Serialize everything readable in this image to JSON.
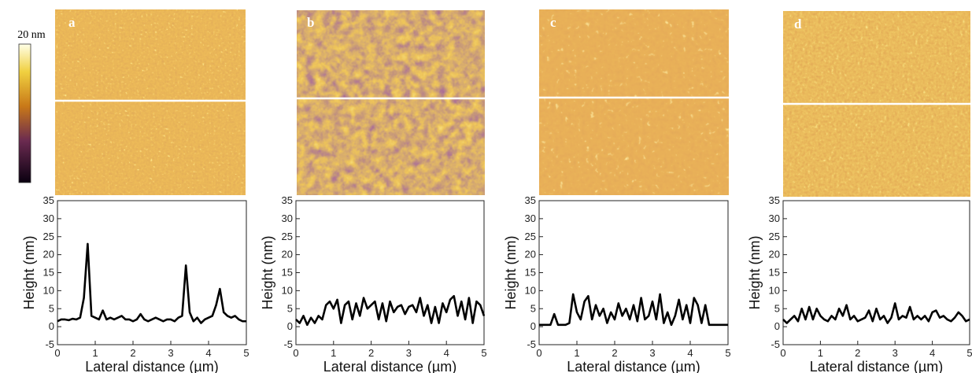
{
  "colorbar_label": "20 nm",
  "chart_data": [
    {
      "type": "line",
      "panel_label": "a",
      "xlabel": "Lateral distance (µm)",
      "ylabel": "Height (nm)",
      "color": "#000000",
      "x": [
        0,
        0.1,
        0.2,
        0.3,
        0.4,
        0.5,
        0.6,
        0.7,
        0.8,
        0.9,
        1,
        1.1,
        1.2,
        1.3,
        1.4,
        1.5,
        1.6,
        1.7,
        1.8,
        1.9,
        2,
        2.1,
        2.2,
        2.3,
        2.4,
        2.5,
        2.6,
        2.7,
        2.8,
        2.9,
        3,
        3.1,
        3.2,
        3.3,
        3.4,
        3.5,
        3.6,
        3.7,
        3.8,
        3.9,
        4,
        4.1,
        4.2,
        4.3,
        4.4,
        4.5,
        4.6,
        4.7,
        4.8,
        4.9,
        5
      ],
      "values": [
        1.5,
        2,
        2,
        1.8,
        2.2,
        2,
        2.5,
        8,
        23,
        3,
        2.5,
        2,
        4.5,
        2,
        2.5,
        2,
        2.5,
        3,
        2,
        2,
        1.5,
        2,
        3.5,
        2,
        1.5,
        2,
        2.5,
        2,
        1.5,
        2,
        2,
        1.5,
        2.5,
        3,
        17,
        4,
        1.5,
        2.5,
        1,
        2,
        2.5,
        3,
        6,
        10.5,
        4,
        3,
        2.5,
        3,
        2,
        1.5,
        1.5
      ],
      "xlim": [
        0,
        5
      ],
      "xticks": [
        0,
        1,
        2,
        3,
        4,
        5
      ],
      "ylim": [
        -5,
        35
      ],
      "yticks": [
        -5,
        0,
        5,
        10,
        15,
        20,
        25,
        30,
        35
      ]
    },
    {
      "type": "line",
      "panel_label": "b",
      "xlabel": "Lateral distance (µm)",
      "ylabel": "Height (nm)",
      "color": "#000000",
      "x": [
        0,
        0.1,
        0.2,
        0.3,
        0.4,
        0.5,
        0.6,
        0.7,
        0.8,
        0.9,
        1,
        1.1,
        1.2,
        1.3,
        1.4,
        1.5,
        1.6,
        1.7,
        1.8,
        1.9,
        2,
        2.1,
        2.2,
        2.3,
        2.4,
        2.5,
        2.6,
        2.7,
        2.8,
        2.9,
        3,
        3.1,
        3.2,
        3.3,
        3.4,
        3.5,
        3.6,
        3.7,
        3.8,
        3.9,
        4,
        4.1,
        4.2,
        4.3,
        4.4,
        4.5,
        4.6,
        4.7,
        4.8,
        4.9,
        5
      ],
      "values": [
        2,
        1,
        3,
        0.5,
        2.5,
        1,
        3,
        2,
        6,
        7,
        5,
        7.5,
        1,
        6,
        7,
        2,
        6.5,
        3,
        8,
        5,
        6,
        7,
        2,
        6.5,
        1.5,
        7,
        4,
        5.5,
        6,
        3.5,
        5.5,
        6,
        4,
        8,
        3,
        6,
        1,
        5.5,
        1,
        6.5,
        4,
        7.5,
        8.5,
        3,
        7,
        2,
        8,
        1,
        7,
        6,
        3
      ],
      "xlim": [
        0,
        5
      ],
      "xticks": [
        0,
        1,
        2,
        3,
        4,
        5
      ],
      "ylim": [
        -5,
        35
      ],
      "yticks": [
        -5,
        0,
        5,
        10,
        15,
        20,
        25,
        30,
        35
      ]
    },
    {
      "type": "line",
      "panel_label": "c",
      "xlabel": "Lateral distance (µm)",
      "ylabel": "Height (nm)",
      "color": "#000000",
      "x": [
        0,
        0.1,
        0.2,
        0.3,
        0.4,
        0.5,
        0.6,
        0.7,
        0.8,
        0.9,
        1,
        1.1,
        1.2,
        1.3,
        1.4,
        1.5,
        1.6,
        1.7,
        1.8,
        1.9,
        2,
        2.1,
        2.2,
        2.3,
        2.4,
        2.5,
        2.6,
        2.7,
        2.8,
        2.9,
        3,
        3.1,
        3.2,
        3.3,
        3.4,
        3.5,
        3.6,
        3.7,
        3.8,
        3.9,
        4,
        4.1,
        4.2,
        4.3,
        4.4,
        4.5,
        4.6,
        4.7,
        4.8,
        4.9,
        5
      ],
      "values": [
        0.5,
        0.5,
        0.5,
        0.5,
        3.5,
        0.5,
        0.5,
        0.5,
        1,
        9,
        4,
        2,
        7,
        8.5,
        2,
        6,
        3,
        5,
        1,
        4,
        2,
        6.5,
        3,
        5,
        2,
        6,
        1.5,
        8,
        2,
        3,
        7,
        2,
        9,
        1,
        4,
        0.5,
        3,
        7.5,
        2,
        6,
        1,
        8,
        6,
        1,
        6,
        0.5,
        0.5,
        0.5,
        0.5,
        0.5,
        0.5
      ],
      "xlim": [
        0,
        5
      ],
      "xticks": [
        0,
        1,
        2,
        3,
        4,
        5
      ],
      "ylim": [
        -5,
        35
      ],
      "yticks": [
        -5,
        0,
        5,
        10,
        15,
        20,
        25,
        30,
        35
      ]
    },
    {
      "type": "line",
      "panel_label": "d",
      "xlabel": "Lateral distance (µm)",
      "ylabel": "Height (nm)",
      "color": "#000000",
      "x": [
        0,
        0.1,
        0.2,
        0.3,
        0.4,
        0.5,
        0.6,
        0.7,
        0.8,
        0.9,
        1,
        1.1,
        1.2,
        1.3,
        1.4,
        1.5,
        1.6,
        1.7,
        1.8,
        1.9,
        2,
        2.1,
        2.2,
        2.3,
        2.4,
        2.5,
        2.6,
        2.7,
        2.8,
        2.9,
        3,
        3.1,
        3.2,
        3.3,
        3.4,
        3.5,
        3.6,
        3.7,
        3.8,
        3.9,
        4,
        4.1,
        4.2,
        4.3,
        4.4,
        4.5,
        4.6,
        4.7,
        4.8,
        4.9,
        5
      ],
      "values": [
        2,
        1,
        2,
        3,
        1.5,
        5,
        2,
        5.5,
        2,
        5,
        3,
        2,
        1.5,
        3,
        2,
        5,
        3,
        6,
        2,
        3,
        1.5,
        2,
        2.5,
        4.5,
        1.5,
        5,
        2,
        3,
        1,
        2.5,
        6.5,
        2,
        3,
        2.5,
        5.5,
        2,
        3,
        2,
        3,
        1.5,
        4,
        4.5,
        2.5,
        3,
        2,
        1.5,
        2.5,
        4,
        3,
        1.5,
        2
      ],
      "xlim": [
        0,
        5
      ],
      "xticks": [
        0,
        1,
        2,
        3,
        4,
        5
      ],
      "ylim": [
        -5,
        35
      ],
      "yticks": [
        -5,
        0,
        5,
        10,
        15,
        20,
        25,
        30,
        35
      ]
    }
  ]
}
